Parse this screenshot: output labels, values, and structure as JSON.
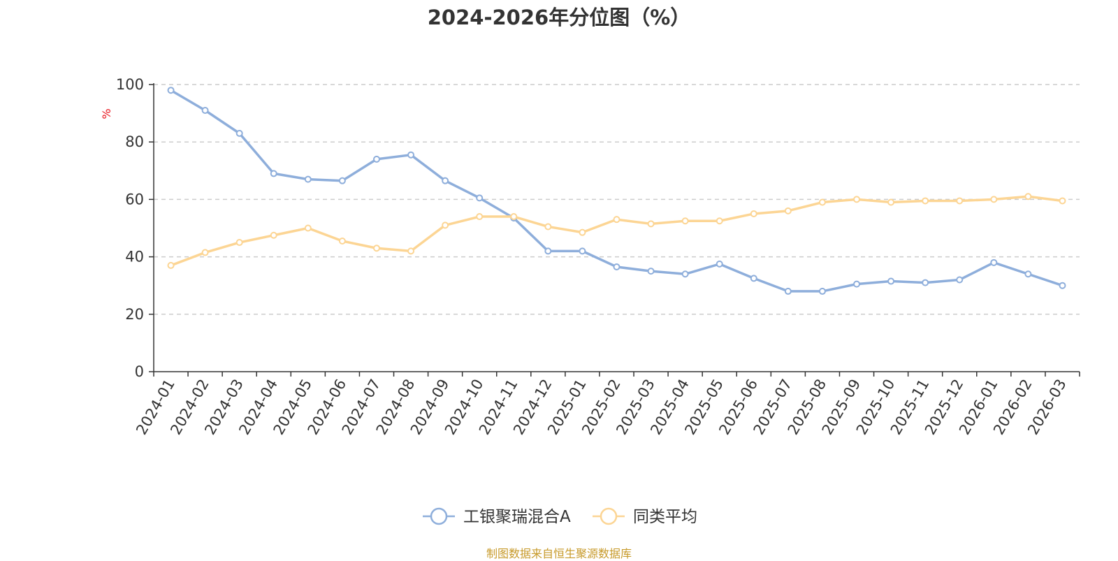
{
  "chart_data": {
    "type": "line",
    "title": "2024-2026年分位图（%）",
    "ylabel": "%",
    "xlabel": "",
    "ylim": [
      0,
      100
    ],
    "yticks": [
      0,
      20,
      40,
      60,
      80,
      100
    ],
    "grid": true,
    "legend_position": "bottom",
    "categories": [
      "2024-01",
      "2024-02",
      "2024-03",
      "2024-04",
      "2024-05",
      "2024-06",
      "2024-07",
      "2024-08",
      "2024-09",
      "2024-10",
      "2024-11",
      "2024-12",
      "2025-01",
      "2025-02",
      "2025-03",
      "2025-04",
      "2025-05",
      "2025-06",
      "2025-07",
      "2025-08",
      "2025-09",
      "2025-10",
      "2025-11",
      "2025-12",
      "2026-01",
      "2026-02",
      "2026-03"
    ],
    "series": [
      {
        "name": "工银聚瑞混合A",
        "color": "#8eaedb",
        "values": [
          98,
          91,
          83,
          69,
          67,
          66.5,
          74,
          75.5,
          66.5,
          60.5,
          53.5,
          42,
          42,
          36.5,
          35,
          34,
          37.5,
          32.5,
          28,
          28,
          30.5,
          31.5,
          31,
          32,
          38,
          34,
          30
        ]
      },
      {
        "name": "同类平均",
        "color": "#fcd594",
        "values": [
          37,
          41.5,
          45,
          47.5,
          50,
          45.5,
          43,
          42,
          51,
          54,
          54,
          50.5,
          48.5,
          53,
          51.5,
          52.5,
          52.5,
          55,
          56,
          59,
          60,
          59,
          59.5,
          59.5,
          60,
          61,
          59.5
        ]
      }
    ]
  },
  "source": "制图数据来自恒生聚源数据库"
}
